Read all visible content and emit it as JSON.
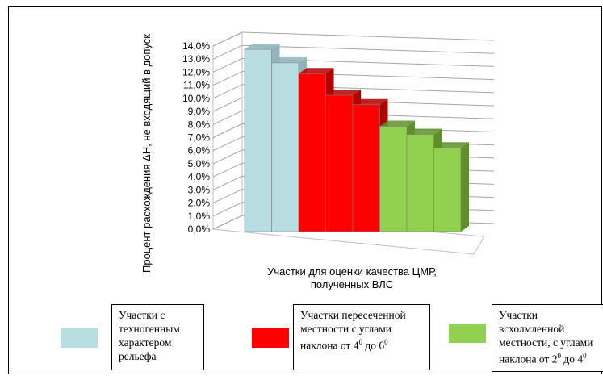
{
  "chart_data": {
    "type": "bar",
    "ylabel": "Процент расхождения ΔH, не входящий в допуск",
    "xlabel_line1": "Участки для  оценки качества ЦМР,",
    "xlabel_line2": "полученных ВЛС",
    "y_ticks": [
      "0,0%",
      "1,0%",
      "2,0%",
      "3,0%",
      "4,0%",
      "5,0%",
      "6,0%",
      "7,0%",
      "8,0%",
      "9,0%",
      "10,0%",
      "11,0%",
      "12,0%",
      "13,0%",
      "14,0%"
    ],
    "ylim": [
      0,
      14
    ],
    "grid": true,
    "values": [
      13.5,
      12.5,
      11.7,
      10.1,
      9.4,
      7.8,
      7.2,
      6.2
    ],
    "groups": [
      0,
      0,
      1,
      1,
      1,
      2,
      2,
      2
    ]
  },
  "colors": {
    "group0": "#b7dde3",
    "group0_side": "#8fb5bb",
    "group1": "#ff0000",
    "group1_side": "#b00000",
    "group2": "#92d050",
    "group2_side": "#5f8f2a"
  },
  "legend": [
    {
      "lines": [
        "Участки с",
        "техногенным",
        "характером",
        "рельефа"
      ],
      "color": "#b7dde3"
    },
    {
      "lines": [
        "Участки  пересеченной",
        "местности  с углами"
      ],
      "line3_prefix": "наклона  от 4",
      "sup1": "0",
      "line3_mid": " до  6",
      "sup2": "0",
      "color": "#ff0000"
    },
    {
      "lines": [
        "Участки",
        "всхолмленной",
        "местности, с углами"
      ],
      "line4_prefix": "наклона  от 2",
      "sup1": "0",
      "line4_mid": " до 4",
      "sup2": "0",
      "color": "#92d050"
    }
  ]
}
